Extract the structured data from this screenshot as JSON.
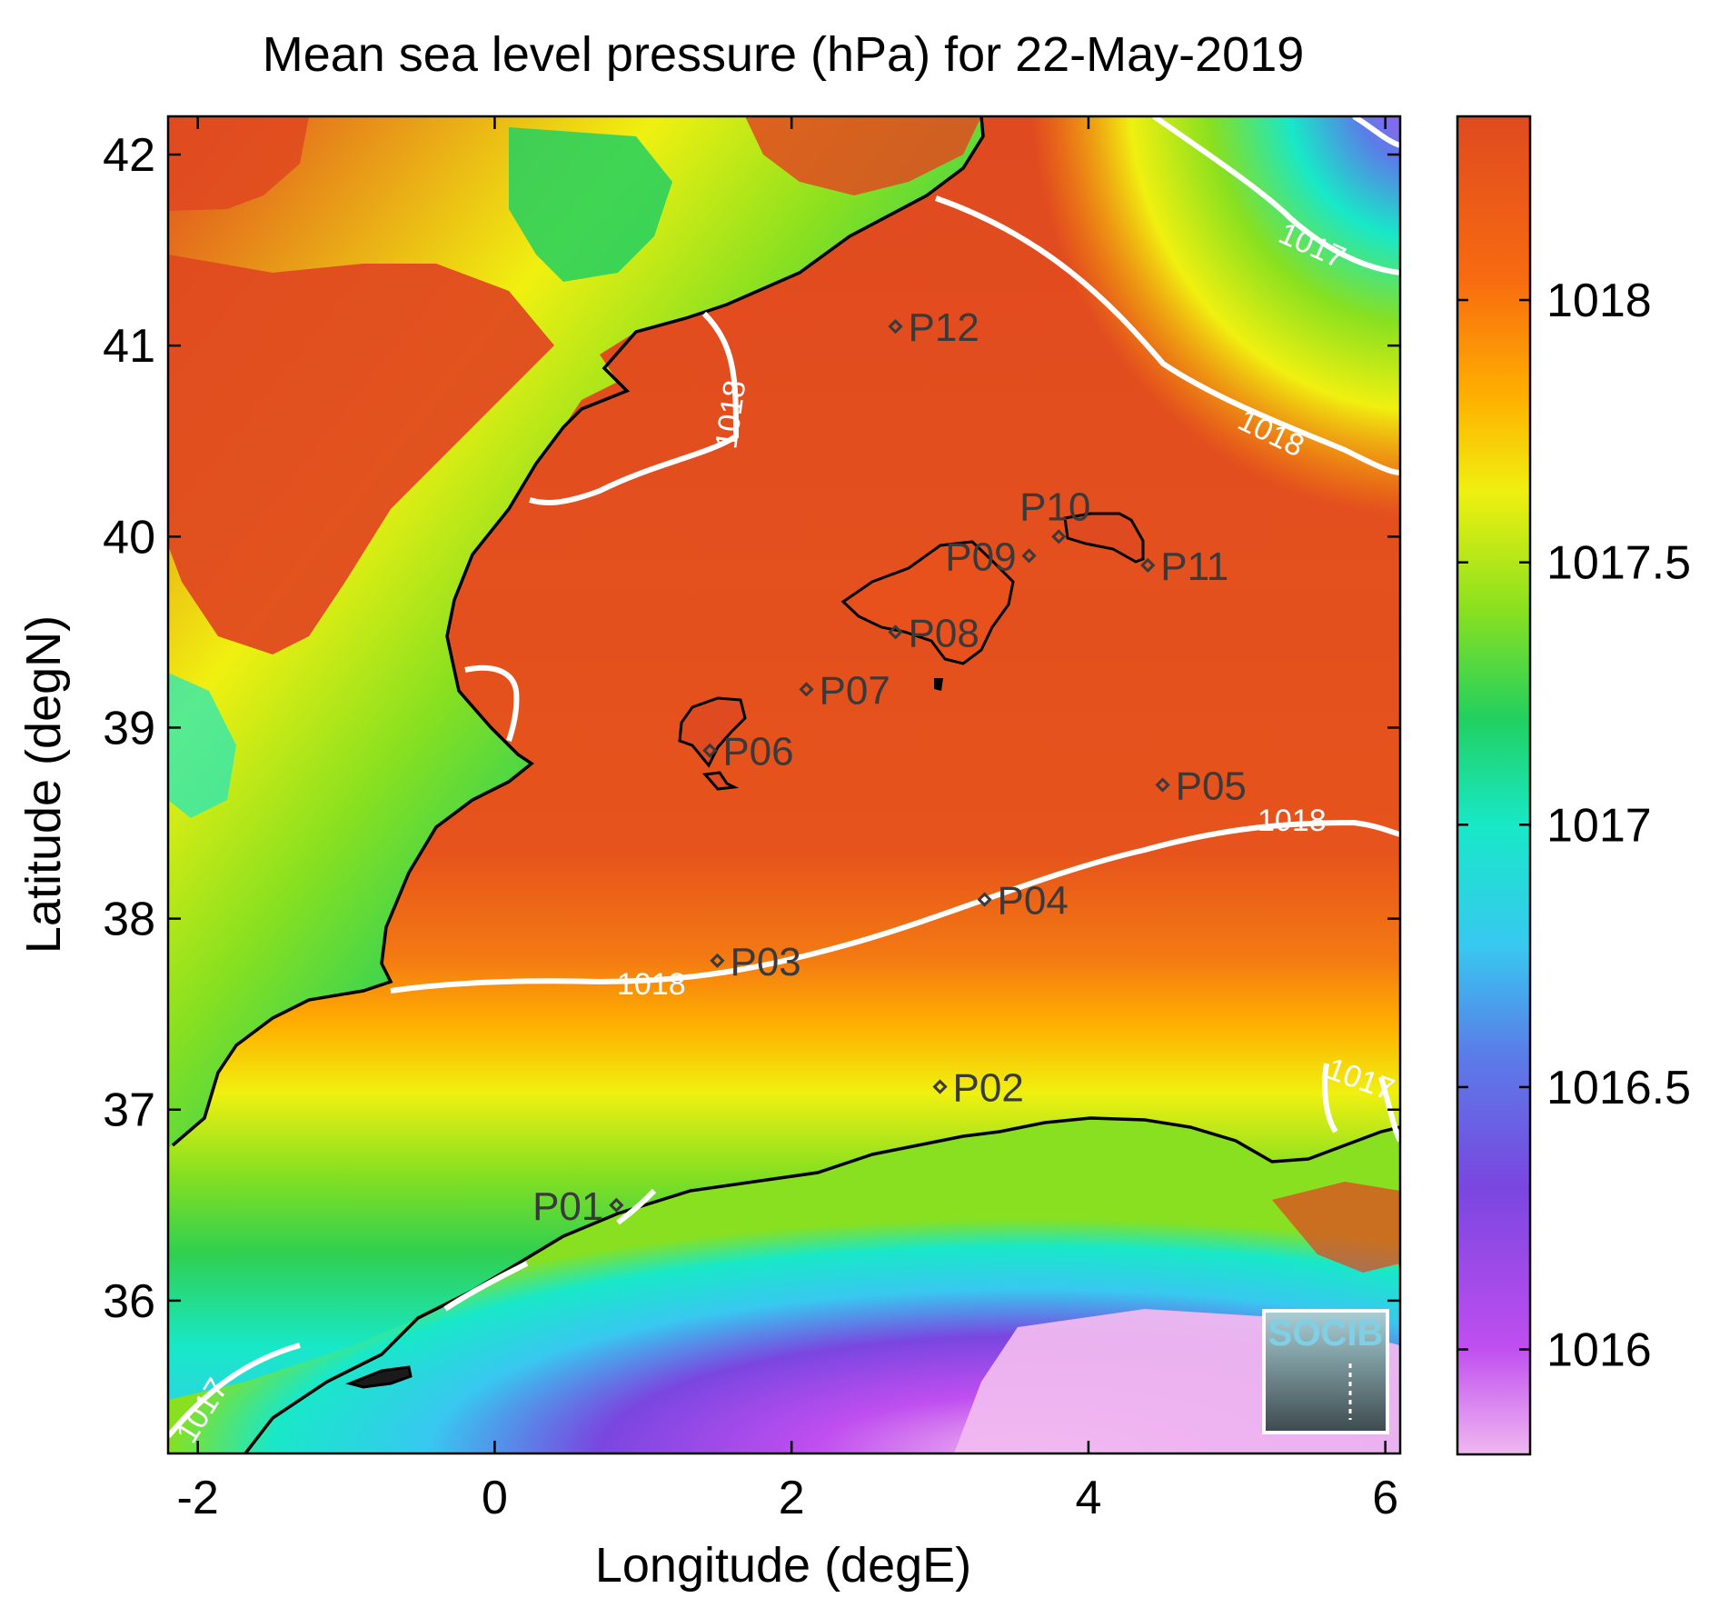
{
  "chart_data": {
    "type": "heatmap",
    "title": "Mean sea level pressure (hPa) for 22-May-2019",
    "xlabel": "Longitude (degE)",
    "ylabel": "Latitude (degN)",
    "xlim": [
      -2.2,
      6.1
    ],
    "ylim": [
      35.2,
      42.2
    ],
    "x_ticks": [
      {
        "value": -2,
        "label": "-2"
      },
      {
        "value": 0,
        "label": "0"
      },
      {
        "value": 2,
        "label": "2"
      },
      {
        "value": 4,
        "label": "4"
      },
      {
        "value": 6,
        "label": "6"
      }
    ],
    "y_ticks": [
      {
        "value": 36,
        "label": "36"
      },
      {
        "value": 37,
        "label": "37"
      },
      {
        "value": 38,
        "label": "38"
      },
      {
        "value": 39,
        "label": "39"
      },
      {
        "value": 40,
        "label": "40"
      },
      {
        "value": 41,
        "label": "41"
      },
      {
        "value": 42,
        "label": "42"
      }
    ],
    "colorbar": {
      "range": [
        1015.8,
        1018.35
      ],
      "ticks": [
        {
          "value": 1016,
          "label": "1016"
        },
        {
          "value": 1016.5,
          "label": "1016.5"
        },
        {
          "value": 1017,
          "label": "1017"
        },
        {
          "value": 1017.5,
          "label": "1017.5"
        },
        {
          "value": 1018,
          "label": "1018"
        }
      ],
      "colors": [
        "#f0b8f0",
        "#c04ef0",
        "#7a46e0",
        "#5a7de8",
        "#38c8f0",
        "#18e8c8",
        "#22d060",
        "#88e020",
        "#f0f010",
        "#ffb000",
        "#f86a10",
        "#e04a20"
      ]
    },
    "contours": [
      {
        "level": 1017,
        "label": "1017"
      },
      {
        "level": 1018,
        "label": "1018"
      }
    ],
    "points": [
      {
        "name": "P01",
        "lon": 0.82,
        "lat": 36.5
      },
      {
        "name": "P02",
        "lon": 3.0,
        "lat": 37.12
      },
      {
        "name": "P03",
        "lon": 1.5,
        "lat": 37.78
      },
      {
        "name": "P04",
        "lon": 3.3,
        "lat": 38.1
      },
      {
        "name": "P05",
        "lon": 4.5,
        "lat": 38.7
      },
      {
        "name": "P06",
        "lon": 1.45,
        "lat": 38.88
      },
      {
        "name": "P07",
        "lon": 2.1,
        "lat": 39.2
      },
      {
        "name": "P08",
        "lon": 2.7,
        "lat": 39.5
      },
      {
        "name": "P09",
        "lon": 3.6,
        "lat": 39.9
      },
      {
        "name": "P10",
        "lon": 3.8,
        "lat": 40.0
      },
      {
        "name": "P11",
        "lon": 4.4,
        "lat": 39.85
      },
      {
        "name": "P12",
        "lon": 2.7,
        "lat": 41.1
      }
    ]
  },
  "logo": {
    "text": "SOCIB"
  }
}
